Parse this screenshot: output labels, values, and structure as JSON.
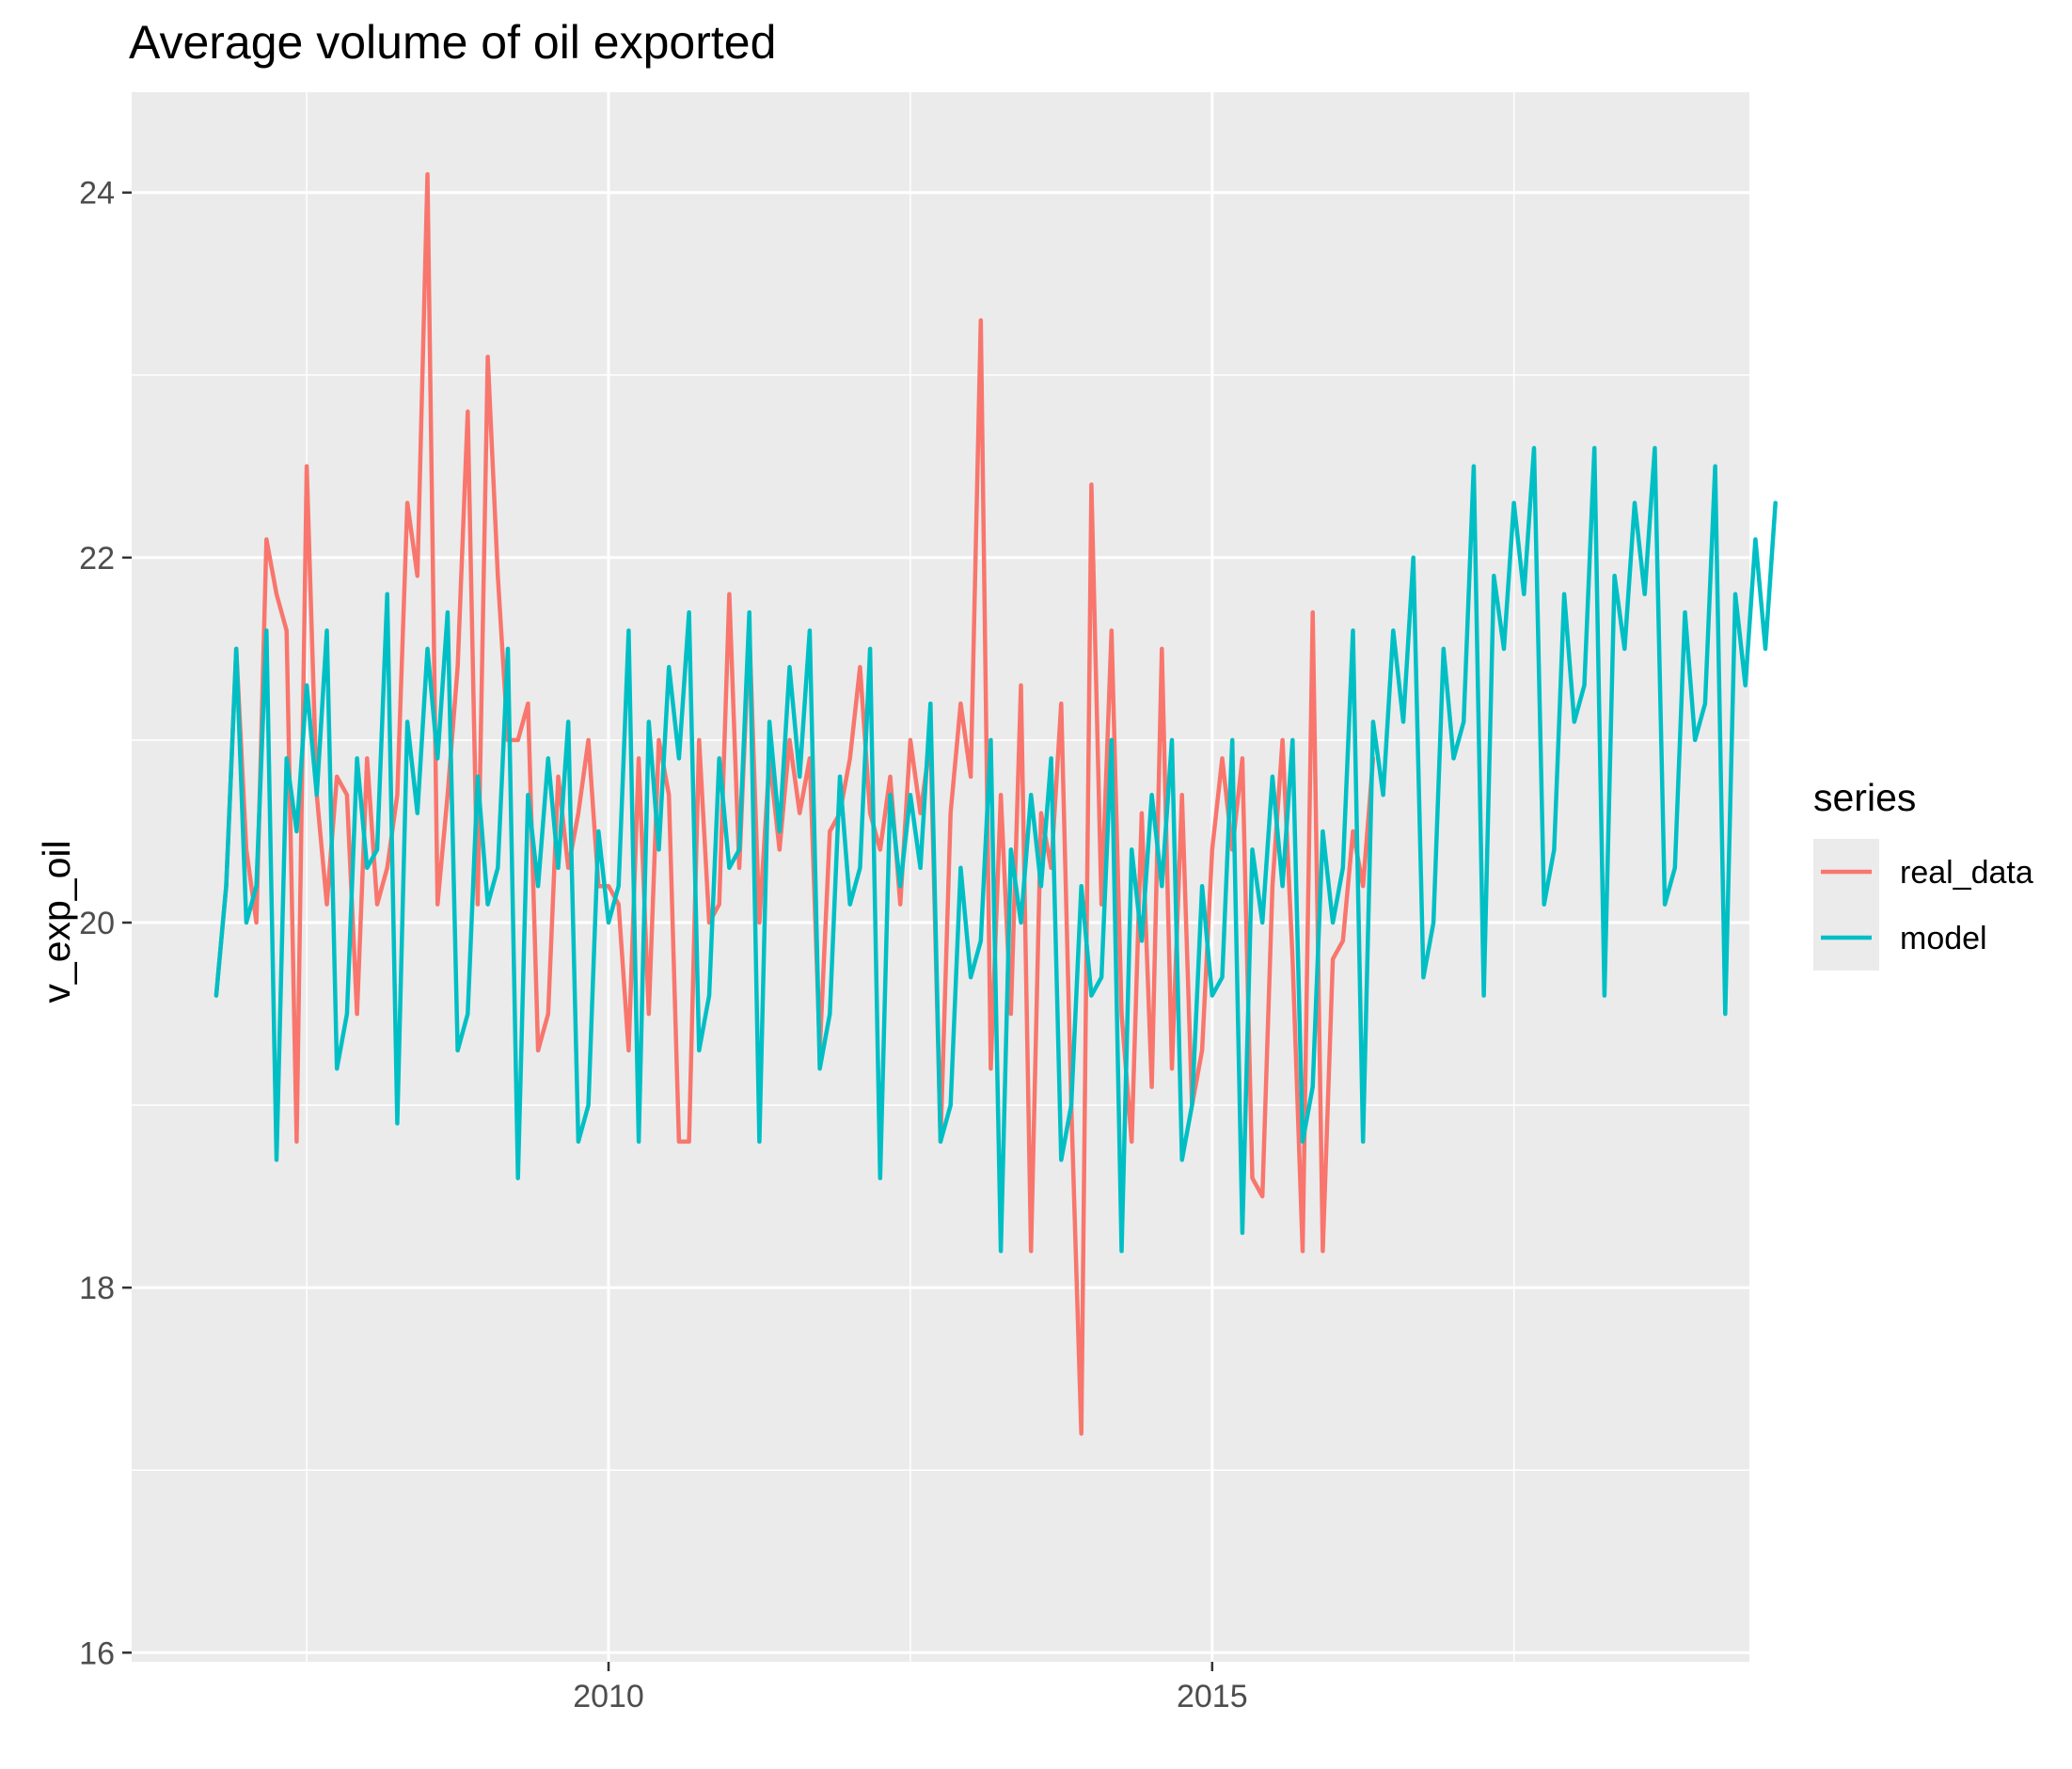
{
  "chart_data": {
    "type": "line",
    "title": "Average volume of oil exported",
    "ylabel": "v_exp_oil",
    "xlabel": "",
    "x_ticks": [
      2010,
      2015
    ],
    "y_ticks": [
      16,
      18,
      20,
      22,
      24
    ],
    "xlim": [
      2006.05,
      2019.45
    ],
    "ylim": [
      15.95,
      24.55
    ],
    "grid": true,
    "background": "#ebebeb",
    "legend": {
      "title": "series",
      "position": "right"
    },
    "series": [
      {
        "name": "real_data",
        "color": "#f8766d",
        "x_start": 2006.75,
        "x_step": 0.08333,
        "values": [
          19.6,
          20.2,
          21.5,
          20.4,
          20.0,
          22.1,
          21.8,
          21.6,
          18.8,
          22.5,
          20.7,
          20.1,
          20.8,
          20.7,
          19.5,
          20.9,
          20.1,
          20.3,
          20.7,
          22.3,
          21.9,
          24.1,
          20.1,
          20.7,
          21.4,
          22.8,
          20.1,
          23.1,
          21.9,
          21.0,
          21.0,
          21.2,
          19.3,
          19.5,
          20.8,
          20.3,
          20.6,
          21.0,
          20.2,
          20.2,
          20.1,
          19.3,
          20.9,
          19.5,
          21.0,
          20.7,
          18.8,
          18.8,
          21.0,
          20.0,
          20.1,
          21.8,
          20.3,
          21.6,
          20.0,
          20.9,
          20.4,
          21.0,
          20.6,
          20.9,
          19.3,
          20.5,
          20.6,
          20.9,
          21.4,
          20.6,
          20.4,
          20.8,
          20.1,
          21.0,
          20.6,
          21.0,
          18.8,
          20.6,
          21.2,
          20.8,
          23.3,
          19.2,
          20.7,
          19.5,
          21.3,
          18.2,
          20.6,
          20.3,
          21.2,
          19.0,
          17.2,
          22.4,
          20.1,
          21.6,
          19.5,
          18.8,
          20.6,
          19.1,
          21.5,
          19.2,
          20.7,
          19.0,
          19.3,
          20.4,
          20.9,
          20.4,
          20.9,
          18.6,
          18.5,
          20.2,
          21.0,
          19.8,
          18.2,
          21.7,
          18.2,
          19.8,
          19.9,
          20.5,
          20.2,
          20.9
        ]
      },
      {
        "name": "model",
        "color": "#00bfc4",
        "x_start": 2006.75,
        "x_step": 0.08333,
        "values": [
          19.6,
          20.2,
          21.5,
          20.0,
          20.2,
          21.6,
          18.7,
          20.9,
          20.5,
          21.3,
          20.7,
          21.6,
          19.2,
          19.5,
          20.9,
          20.3,
          20.4,
          21.8,
          18.9,
          21.1,
          20.6,
          21.5,
          20.9,
          21.7,
          19.3,
          19.5,
          20.8,
          20.1,
          20.3,
          21.5,
          18.6,
          20.7,
          20.2,
          20.9,
          20.3,
          21.1,
          18.8,
          19.0,
          20.5,
          20.0,
          20.2,
          21.6,
          18.8,
          21.1,
          20.4,
          21.4,
          20.9,
          21.7,
          19.3,
          19.6,
          20.9,
          20.3,
          20.4,
          21.7,
          18.8,
          21.1,
          20.5,
          21.4,
          20.8,
          21.6,
          19.2,
          19.5,
          20.8,
          20.1,
          20.3,
          21.5,
          18.6,
          20.7,
          20.2,
          20.7,
          20.3,
          21.2,
          18.8,
          19.0,
          20.3,
          19.7,
          19.9,
          21.0,
          18.2,
          20.4,
          20.0,
          20.7,
          20.2,
          20.9,
          18.7,
          19.0,
          20.2,
          19.6,
          19.7,
          21.0,
          18.2,
          20.4,
          19.9,
          20.7,
          20.2,
          21.0,
          18.7,
          19.0,
          20.2,
          19.6,
          19.7,
          21.0,
          18.3,
          20.4,
          20.0,
          20.8,
          20.2,
          21.0,
          18.8,
          19.1,
          20.5,
          20.0,
          20.3,
          21.6,
          18.8,
          21.1,
          20.7,
          21.6,
          21.1,
          22.0,
          19.7,
          20.0,
          21.5,
          20.9,
          21.1,
          22.5,
          19.6,
          21.9,
          21.5,
          22.3,
          21.8,
          22.6,
          20.1,
          20.4,
          21.8,
          21.1,
          21.3,
          22.6,
          19.6,
          21.9,
          21.5,
          22.3,
          21.8,
          22.6,
          20.1,
          20.3,
          21.7,
          21.0,
          21.2,
          22.5,
          19.5,
          21.8,
          21.3,
          22.1,
          21.5,
          22.3
        ]
      }
    ]
  }
}
